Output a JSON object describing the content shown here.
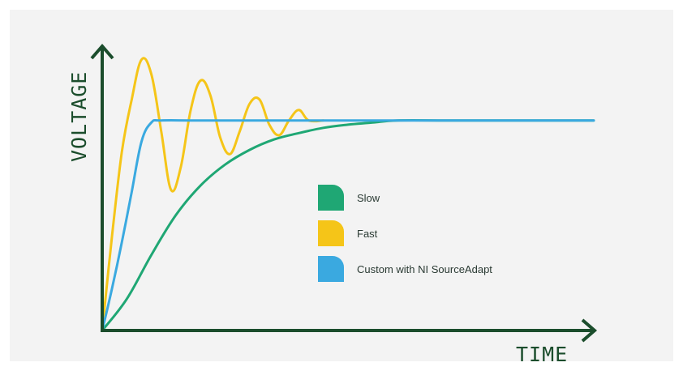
{
  "chart_data": {
    "type": "line",
    "title": "",
    "xlabel": "TIME",
    "ylabel": "VOLTAGE",
    "grid": false,
    "legend_position": "center-right",
    "x_ticks": false,
    "y_ticks": false,
    "xlim": [
      0,
      10
    ],
    "ylim": [
      0,
      1.35
    ],
    "series": [
      {
        "name": "Slow",
        "color": "#1fa774",
        "x": [
          0,
          0.5,
          1,
          1.5,
          2,
          2.5,
          3,
          3.5,
          4,
          4.5,
          5,
          5.5,
          6,
          7,
          8,
          9,
          10
        ],
        "y": [
          0,
          0.15,
          0.36,
          0.55,
          0.69,
          0.79,
          0.86,
          0.91,
          0.94,
          0.965,
          0.98,
          0.99,
          1.0,
          1.0,
          1.0,
          1.0,
          1.0
        ]
      },
      {
        "name": "Fast",
        "color": "#f5c518",
        "x": [
          0,
          0.2,
          0.4,
          0.6,
          0.8,
          1.0,
          1.2,
          1.4,
          1.6,
          1.8,
          2.0,
          2.2,
          2.4,
          2.6,
          2.8,
          3.0,
          3.2,
          3.4,
          3.6,
          3.8,
          4.0,
          4.2,
          4.5
        ],
        "y": [
          0,
          0.45,
          0.85,
          1.1,
          1.29,
          1.22,
          0.95,
          0.67,
          0.78,
          1.05,
          1.19,
          1.12,
          0.92,
          0.84,
          0.95,
          1.08,
          1.1,
          0.98,
          0.93,
          1.0,
          1.05,
          1.0,
          1.0
        ]
      },
      {
        "name": "Custom with NI SourceAdapt",
        "color": "#3aa9e0",
        "x": [
          0,
          0.2,
          0.4,
          0.6,
          0.8,
          1.0,
          1.2,
          2,
          4,
          6,
          8,
          10
        ],
        "y": [
          0,
          0.2,
          0.42,
          0.66,
          0.9,
          0.99,
          1.0,
          1.0,
          1.0,
          1.0,
          1.0,
          1.0
        ]
      }
    ]
  },
  "colors": {
    "axis": "#1b4d2c",
    "legend_text": "#2a3a33",
    "panel": "#f3f3f3"
  }
}
